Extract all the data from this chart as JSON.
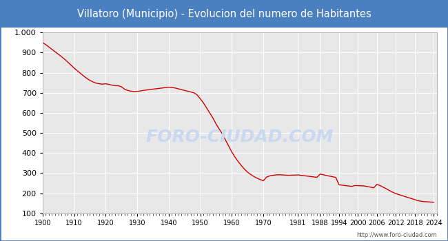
{
  "title": "Villatoro (Municipio) - Evolucion del numero de Habitantes",
  "title_bg_color": "#4a7fc0",
  "title_text_color": "#ffffff",
  "plot_bg_color": "#e8e8e8",
  "outer_bg_color": "#ffffff",
  "border_color": "#4a7fc0",
  "line_color": "#cc0000",
  "watermark_text": "FORO-CIUDAD.COM",
  "watermark_color": "#c8d8f0",
  "url_text": "http://www.foro-ciudad.com",
  "ylim": [
    100,
    1000
  ],
  "ytick_values": [
    100,
    200,
    300,
    400,
    500,
    600,
    700,
    800,
    900,
    1000
  ],
  "xtick_labels": [
    "1900",
    "1910",
    "1920",
    "1930",
    "1940",
    "1950",
    "1960",
    "1970",
    "1981",
    "1988",
    "1994",
    "2000",
    "2006",
    "2012",
    "2018",
    "2024"
  ],
  "xtick_positions": [
    1900,
    1910,
    1920,
    1930,
    1940,
    1950,
    1960,
    1970,
    1981,
    1988,
    1994,
    2000,
    2006,
    2012,
    2018,
    2024
  ],
  "years": [
    1900,
    1901,
    1902,
    1903,
    1904,
    1905,
    1906,
    1907,
    1908,
    1909,
    1910,
    1911,
    1912,
    1913,
    1914,
    1915,
    1916,
    1917,
    1918,
    1919,
    1920,
    1921,
    1922,
    1923,
    1924,
    1925,
    1926,
    1927,
    1928,
    1929,
    1930,
    1931,
    1932,
    1933,
    1934,
    1935,
    1936,
    1937,
    1938,
    1939,
    1940,
    1941,
    1942,
    1943,
    1944,
    1945,
    1946,
    1947,
    1948,
    1949,
    1950,
    1951,
    1952,
    1953,
    1954,
    1955,
    1956,
    1957,
    1958,
    1959,
    1960,
    1961,
    1962,
    1963,
    1964,
    1965,
    1966,
    1967,
    1968,
    1969,
    1970,
    1971,
    1972,
    1973,
    1974,
    1975,
    1976,
    1977,
    1978,
    1979,
    1980,
    1981,
    1982,
    1983,
    1984,
    1985,
    1986,
    1987,
    1988,
    1989,
    1990,
    1991,
    1992,
    1993,
    1994,
    1995,
    1996,
    1997,
    1998,
    1999,
    2000,
    2001,
    2002,
    2003,
    2004,
    2005,
    2006,
    2007,
    2008,
    2009,
    2010,
    2011,
    2012,
    2013,
    2014,
    2015,
    2016,
    2017,
    2018,
    2019,
    2020,
    2021,
    2022,
    2023,
    2024
  ],
  "population": [
    950,
    940,
    928,
    916,
    904,
    892,
    880,
    867,
    853,
    838,
    823,
    810,
    797,
    784,
    772,
    762,
    754,
    748,
    745,
    743,
    745,
    742,
    738,
    736,
    735,
    730,
    718,
    712,
    708,
    706,
    707,
    709,
    712,
    714,
    716,
    718,
    720,
    722,
    724,
    726,
    728,
    726,
    724,
    720,
    716,
    712,
    708,
    704,
    700,
    690,
    670,
    650,
    625,
    600,
    575,
    545,
    520,
    495,
    465,
    435,
    405,
    380,
    358,
    338,
    320,
    305,
    293,
    283,
    275,
    268,
    262,
    280,
    286,
    289,
    291,
    292,
    291,
    290,
    289,
    290,
    290,
    291,
    289,
    287,
    285,
    283,
    281,
    279,
    295,
    292,
    288,
    285,
    282,
    278,
    242,
    240,
    238,
    236,
    234,
    238,
    238,
    237,
    236,
    233,
    230,
    227,
    244,
    238,
    230,
    222,
    213,
    205,
    198,
    193,
    188,
    183,
    178,
    173,
    168,
    163,
    160,
    158,
    157,
    156,
    155
  ]
}
